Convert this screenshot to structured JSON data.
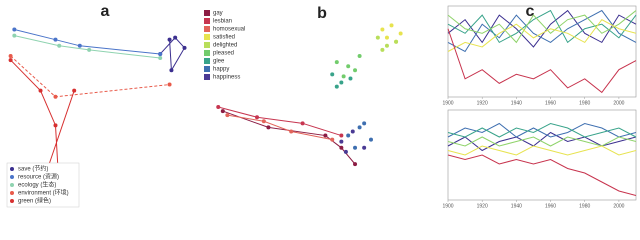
{
  "chart_data": [
    {
      "type": "scatter",
      "title": "a",
      "xlim": [
        0,
        100
      ],
      "ylim": [
        0,
        100
      ],
      "legend": "lower left",
      "series": [
        {
          "name": "save (节约)",
          "color": "#3b2f8f",
          "lines": true,
          "x": [
            88,
            89,
            96,
            91,
            83
          ],
          "y": [
            83,
            68,
            79,
            84,
            76
          ]
        },
        {
          "name": "resource (资源)",
          "color": "#4a74c9",
          "lines": true,
          "x": [
            5,
            27,
            40,
            83
          ],
          "y": [
            88,
            83,
            80,
            76
          ]
        },
        {
          "name": "ecology (生态)",
          "color": "#8fd3b0",
          "lines": true,
          "x": [
            5,
            29,
            45,
            83
          ],
          "y": [
            85,
            80,
            78,
            74
          ]
        },
        {
          "name": "environment (环境)",
          "color": "#e85a4a",
          "lines": true,
          "dash": true,
          "x": [
            3,
            27,
            88
          ],
          "y": [
            75,
            55,
            61
          ]
        },
        {
          "name": "green (绿色)",
          "color": "#d73030",
          "lines": true,
          "x": [
            3,
            19,
            27,
            29,
            21,
            37
          ],
          "y": [
            73,
            58,
            41,
            9,
            15,
            58
          ]
        }
      ]
    },
    {
      "type": "scatter",
      "title": "b",
      "xlim": [
        0,
        100
      ],
      "ylim": [
        0,
        100
      ],
      "legend": "upper left",
      "series": [
        {
          "name": "gay",
          "color": "#8c1d44",
          "lines": true,
          "x": [
            10,
            30,
            55,
            62,
            68
          ],
          "y": [
            48,
            40,
            36,
            30,
            22
          ]
        },
        {
          "name": "lesbian",
          "color": "#c73650",
          "lines": true,
          "x": [
            8,
            25,
            45,
            62
          ],
          "y": [
            50,
            45,
            42,
            36
          ]
        },
        {
          "name": "homosexual",
          "color": "#e2645a",
          "lines": true,
          "x": [
            12,
            28,
            40,
            58
          ],
          "y": [
            46,
            43,
            38,
            34
          ]
        },
        {
          "name": "satisfied",
          "color": "#e7e34f",
          "lines": false,
          "x": [
            80,
            84,
            88,
            86,
            82
          ],
          "y": [
            88,
            90,
            86,
            82,
            84
          ]
        },
        {
          "name": "delighted",
          "color": "#b8de5b",
          "lines": false,
          "x": [
            78,
            82,
            86,
            80
          ],
          "y": [
            84,
            80,
            82,
            78
          ]
        },
        {
          "name": "pleased",
          "color": "#72cc6c",
          "lines": false,
          "x": [
            60,
            65,
            70,
            63,
            68
          ],
          "y": [
            72,
            70,
            75,
            65,
            68
          ]
        },
        {
          "name": "glee",
          "color": "#38a38a",
          "lines": false,
          "x": [
            58,
            62,
            66,
            60
          ],
          "y": [
            66,
            62,
            64,
            60
          ]
        },
        {
          "name": "happy",
          "color": "#3e6fb0",
          "lines": false,
          "x": [
            65,
            70,
            75,
            68,
            72
          ],
          "y": [
            36,
            40,
            34,
            30,
            42
          ]
        },
        {
          "name": "happiness",
          "color": "#4a3a94",
          "lines": false,
          "x": [
            62,
            67,
            72,
            64
          ],
          "y": [
            33,
            38,
            30,
            28
          ]
        }
      ]
    },
    {
      "type": "line",
      "title": "c",
      "xlim": [
        1900,
        2010
      ],
      "ylim": [
        0,
        1
      ],
      "xticks": [
        1900,
        1920,
        1940,
        1960,
        1980,
        2000
      ],
      "x": [
        1900,
        1910,
        1920,
        1930,
        1940,
        1950,
        1960,
        1970,
        1980,
        1990,
        2000,
        2010
      ],
      "series": [
        {
          "color": "#3b2f8f",
          "values": [
            0.7,
            0.85,
            0.6,
            0.9,
            0.75,
            0.55,
            0.8,
            0.95,
            0.7,
            0.6,
            0.9,
            0.8
          ]
        },
        {
          "color": "#3e6fb0",
          "values": [
            0.6,
            0.5,
            0.8,
            0.65,
            0.9,
            0.7,
            0.6,
            0.75,
            0.85,
            0.95,
            0.7,
            0.6
          ]
        },
        {
          "color": "#38a38a",
          "values": [
            0.8,
            0.7,
            0.9,
            0.6,
            0.7,
            0.85,
            0.95,
            0.6,
            0.75,
            0.8,
            0.65,
            0.9
          ]
        },
        {
          "color": "#8fd36a",
          "values": [
            0.9,
            0.75,
            0.7,
            0.8,
            0.6,
            0.9,
            0.7,
            0.85,
            0.9,
            0.7,
            0.8,
            0.95
          ]
        },
        {
          "color": "#e7e34f",
          "values": [
            0.5,
            0.6,
            0.55,
            0.7,
            0.8,
            0.65,
            0.75,
            0.7,
            0.6,
            0.85,
            0.75,
            0.7
          ]
        },
        {
          "color": "#c7334d",
          "values": [
            0.75,
            0.2,
            0.3,
            0.15,
            0.25,
            0.2,
            0.3,
            0.1,
            0.2,
            0.05,
            0.3,
            0.4
          ]
        }
      ]
    },
    {
      "type": "line",
      "xlim": [
        1900,
        2010
      ],
      "ylim": [
        0,
        1
      ],
      "xticks": [
        1900,
        1920,
        1940,
        1960,
        1980,
        2000
      ],
      "x": [
        1900,
        1910,
        1920,
        1930,
        1940,
        1950,
        1960,
        1970,
        1980,
        1990,
        2000,
        2010
      ],
      "series": [
        {
          "color": "#3b2f8f",
          "values": [
            0.6,
            0.7,
            0.55,
            0.65,
            0.7,
            0.6,
            0.75,
            0.65,
            0.7,
            0.6,
            0.65,
            0.7
          ]
        },
        {
          "color": "#3e6fb0",
          "values": [
            0.7,
            0.8,
            0.75,
            0.85,
            0.7,
            0.8,
            0.7,
            0.75,
            0.85,
            0.8,
            0.7,
            0.75
          ]
        },
        {
          "color": "#38a38a",
          "values": [
            0.75,
            0.7,
            0.8,
            0.7,
            0.8,
            0.75,
            0.85,
            0.8,
            0.7,
            0.75,
            0.8,
            0.7
          ]
        },
        {
          "color": "#8fd36a",
          "values": [
            0.65,
            0.6,
            0.7,
            0.6,
            0.65,
            0.7,
            0.6,
            0.7,
            0.65,
            0.6,
            0.7,
            0.65
          ]
        },
        {
          "color": "#e7e34f",
          "values": [
            0.55,
            0.5,
            0.6,
            0.55,
            0.5,
            0.6,
            0.55,
            0.5,
            0.55,
            0.6,
            0.5,
            0.55
          ]
        },
        {
          "color": "#c7334d",
          "values": [
            0.5,
            0.45,
            0.5,
            0.4,
            0.45,
            0.4,
            0.45,
            0.35,
            0.3,
            0.2,
            0.1,
            0.05
          ]
        }
      ]
    }
  ]
}
